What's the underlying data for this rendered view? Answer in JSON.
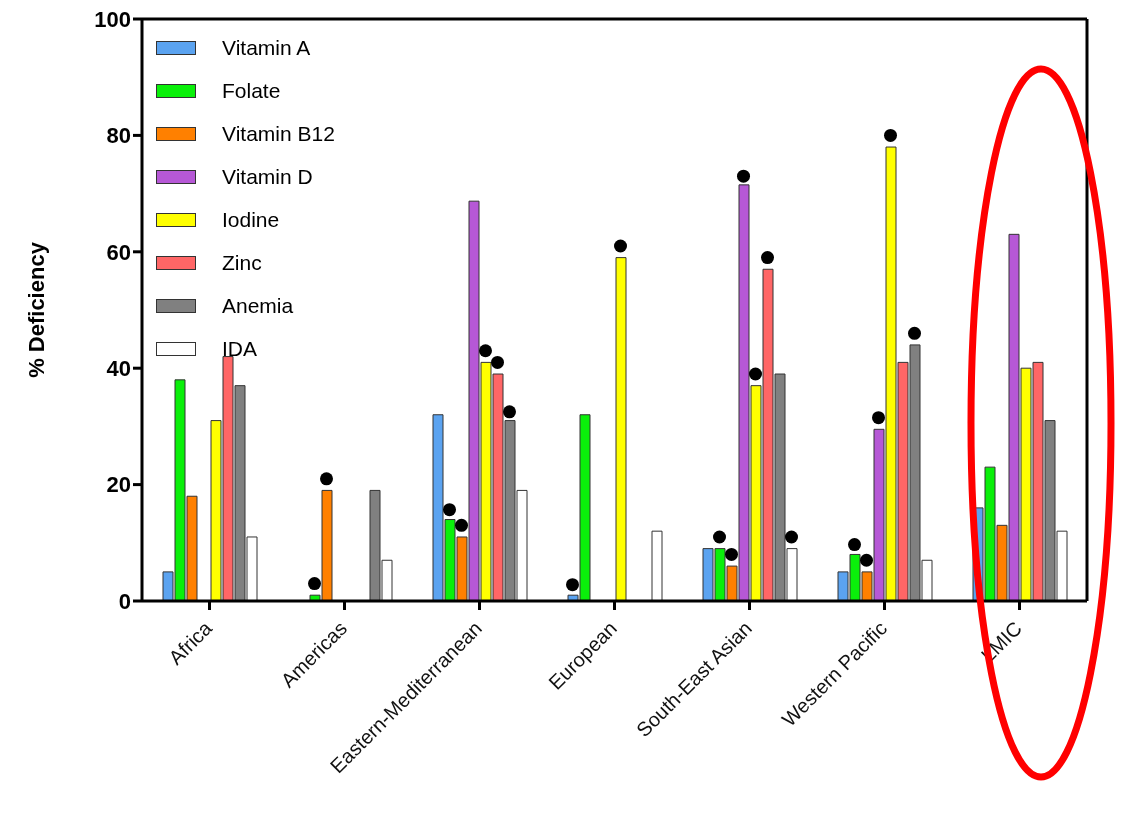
{
  "chart_data": {
    "type": "bar",
    "ylabel": "% Deficiency",
    "categories": [
      "Africa",
      "Americas",
      "Eastern-Mediterranean",
      "European",
      "South-East Asian",
      "Western Pacific",
      "LMIC"
    ],
    "ylim": [
      0,
      100
    ],
    "yticks": [
      0,
      20,
      40,
      60,
      80,
      100
    ],
    "legend": "top left",
    "series": [
      {
        "name": "Vitamin A",
        "color": "#5ba3f0",
        "values": [
          5,
          null,
          32,
          1,
          9,
          5,
          16
        ]
      },
      {
        "name": "Folate",
        "color": "#0af00a",
        "values": [
          38,
          1,
          14,
          32,
          9,
          8,
          23
        ]
      },
      {
        "name": "Vitamin B12",
        "color": "#ff8000",
        "values": [
          18,
          19,
          11,
          null,
          6,
          5,
          13
        ]
      },
      {
        "name": "Vitamin D",
        "color": "#b658d6",
        "values": [
          null,
          null,
          68.7,
          null,
          71.5,
          29.5,
          63
        ]
      },
      {
        "name": "Iodine",
        "color": "#ffff00",
        "values": [
          31,
          null,
          41,
          59,
          37,
          78,
          40
        ]
      },
      {
        "name": "Zinc",
        "color": "#ff6666",
        "values": [
          42,
          null,
          39,
          null,
          57,
          41,
          41
        ]
      },
      {
        "name": "Anemia",
        "color": "#808080",
        "values": [
          37,
          19,
          31,
          null,
          39,
          44,
          31
        ]
      },
      {
        "name": "IDA",
        "color": "#ffffff",
        "values": [
          11,
          7,
          19,
          12,
          9,
          7,
          12
        ]
      },
      {
        "type": "scatter",
        "marker": "circle",
        "color": "#000000",
        "x": [
          "European"
        ],
        "values": [
          2.8
        ]
      },
      {
        "type": "scatter",
        "marker": "circle",
        "color": "#000000",
        "x": [
          "Americas",
          "Eastern-Mediterranean",
          "South-East Asian",
          "Western Pacific"
        ],
        "values": [
          3,
          15.7,
          11,
          9.7
        ]
      },
      {
        "type": "scatter",
        "marker": "circle",
        "color": "#000000",
        "x": [
          "Americas",
          "Eastern-Mediterranean",
          "South-East Asian",
          "Western Pacific"
        ],
        "values": [
          21,
          13,
          8,
          7
        ]
      },
      {
        "type": "scatter",
        "marker": "circle",
        "color": "#000000",
        "x": [
          "South-East Asian",
          "Western Pacific"
        ],
        "values": [
          73,
          31.5
        ]
      },
      {
        "type": "scatter",
        "marker": "circle",
        "color": "#000000",
        "x": [
          "Eastern-Mediterranean",
          "European",
          "South-East Asian",
          "Western Pacific"
        ],
        "values": [
          43,
          61,
          39,
          80
        ]
      },
      {
        "type": "scatter",
        "marker": "circle",
        "color": "#000000",
        "x": [
          "Eastern-Mediterranean",
          "South-East Asian"
        ],
        "values": [
          41,
          59
        ]
      },
      {
        "type": "scatter",
        "marker": "circle",
        "color": "#000000",
        "x": [
          "Eastern-Mediterranean",
          "Western Pacific"
        ],
        "values": [
          32.5,
          46
        ]
      },
      {
        "type": "scatter",
        "marker": "circle",
        "color": "#000000",
        "x": [
          "South-East Asian"
        ],
        "values": [
          11
        ]
      }
    ]
  }
}
